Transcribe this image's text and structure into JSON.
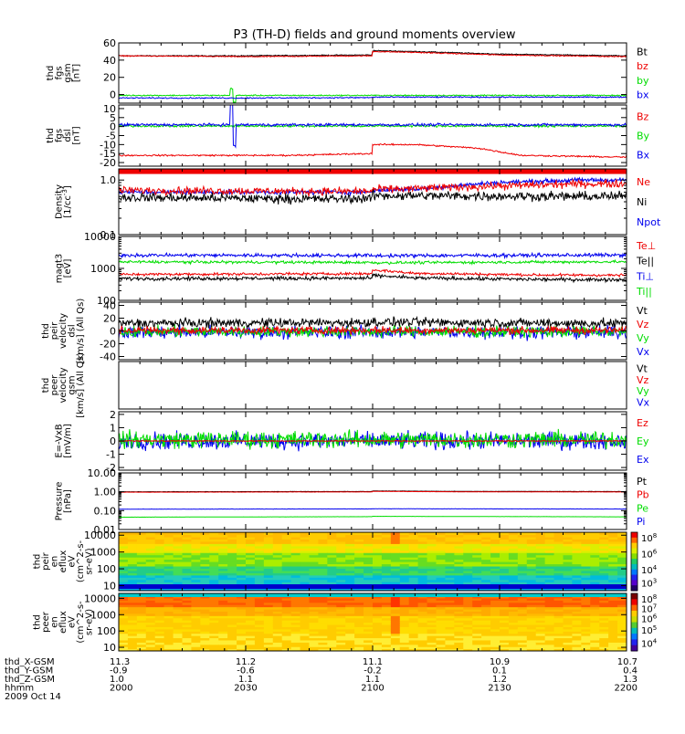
{
  "title": "P3 (TH-D) fields and ground moments overview",
  "colors": {
    "black": "#000000",
    "red": "#ee0000",
    "green": "#00dd00",
    "blue": "#0000ee",
    "spec_bg": "#ffcc00"
  },
  "x_axis": {
    "range": [
      2000,
      2200
    ],
    "tick_values": [
      2000,
      2030,
      2100,
      2130,
      2200
    ],
    "minor_per_major": 6,
    "rows": [
      {
        "label": "thd_X-GSM",
        "values": [
          "11.3",
          "11.2",
          "11.1",
          "10.9",
          "10.7"
        ]
      },
      {
        "label": "thd_Y-GSM",
        "values": [
          "-0.9",
          "-0.6",
          "-0.2",
          "0.1",
          "0.4"
        ]
      },
      {
        "label": "thd_Z-GSM",
        "values": [
          "1.0",
          "1.1",
          "1.1",
          "1.2",
          "1.3"
        ]
      },
      {
        "label": "hhmm",
        "values": [
          "2000",
          "2030",
          "2100",
          "2130",
          "2200"
        ]
      }
    ],
    "date": "2009 Oct 14"
  },
  "colorbars": [
    {
      "name": "ion",
      "labels": [
        {
          "base": "10",
          "exp": "8",
          "f": 0.0
        },
        {
          "base": "10",
          "exp": "6",
          "f": 0.3
        },
        {
          "base": "10",
          "exp": "4",
          "f": 0.6
        },
        {
          "base": "10",
          "exp": "3",
          "f": 0.85
        }
      ]
    },
    {
      "name": "electron",
      "labels": [
        {
          "base": "10",
          "exp": "8",
          "f": 0.0
        },
        {
          "base": "10",
          "exp": "7",
          "f": 0.18
        },
        {
          "base": "10",
          "exp": "6",
          "f": 0.38
        },
        {
          "base": "10",
          "exp": "5",
          "f": 0.6
        },
        {
          "base": "10",
          "exp": "4",
          "f": 0.85
        }
      ]
    }
  ],
  "chart_data": [
    {
      "type": "line",
      "name": "fgs_gsm",
      "ylabel_lines": [
        "thd",
        "fgs",
        "gsm",
        "[nT]"
      ],
      "ylim": [
        -10,
        60
      ],
      "y_ticks": [
        0,
        20,
        40,
        60
      ],
      "y_tick_labels": [
        "0",
        "20",
        "40",
        "60"
      ],
      "legend": [
        {
          "text": "Bt",
          "color": "black"
        },
        {
          "text": "bz",
          "color": "red"
        },
        {
          "text": "by",
          "color": "green"
        },
        {
          "text": "bx",
          "color": "blue"
        }
      ],
      "series": [
        {
          "label": "Bt",
          "color": "black",
          "x": [
            2000,
            2030,
            2060,
            2090,
            2100,
            2110,
            2130,
            2160,
            2200
          ],
          "y": [
            45,
            45,
            46,
            50,
            51,
            50,
            47,
            45,
            46
          ],
          "noise": 0.4
        },
        {
          "label": "bz",
          "color": "red",
          "x": [
            2000,
            2030,
            2060,
            2090,
            2100,
            2110,
            2130,
            2160,
            2200
          ],
          "y": [
            45,
            44,
            45,
            49,
            50,
            49,
            46,
            44,
            45
          ],
          "noise": 0.4
        },
        {
          "label": "by",
          "color": "green",
          "x": [
            2000,
            2200
          ],
          "y": [
            -1,
            -1
          ],
          "noise": 0.5
        },
        {
          "label": "bx",
          "color": "blue",
          "x": [
            2000,
            2030,
            2100,
            2200
          ],
          "y": [
            -4,
            -4,
            -3,
            -3
          ],
          "noise": 0.5
        }
      ],
      "spikes": [
        {
          "x": 2027,
          "series": "by",
          "amp": 8
        }
      ]
    },
    {
      "type": "line",
      "name": "fgs_dsl",
      "ylabel_lines": [
        "thd",
        "fgs",
        "dsl",
        "[nT]"
      ],
      "ylim": [
        -22,
        12
      ],
      "y_ticks": [
        -20,
        -15,
        -10,
        -5,
        0,
        5,
        10
      ],
      "y_tick_labels": [
        "-20",
        "-15",
        "-10",
        "-5",
        "0",
        "5",
        "10"
      ],
      "legend": [
        {
          "text": "Bz",
          "color": "red"
        },
        {
          "text": "By",
          "color": "green"
        },
        {
          "text": "Bx",
          "color": "blue"
        }
      ],
      "series": [
        {
          "label": "Bz",
          "color": "red",
          "x": [
            2000,
            2040,
            2060,
            2080,
            2095,
            2110,
            2125,
            2135,
            2160,
            2200
          ],
          "y": [
            -16,
            -16,
            -15,
            -12,
            -10,
            -10,
            -12,
            -16,
            -17,
            -16
          ],
          "noise": 0.3
        },
        {
          "label": "By",
          "color": "green",
          "x": [
            2000,
            2200
          ],
          "y": [
            0.3,
            0.3
          ],
          "noise": 0.4
        },
        {
          "label": "Bx",
          "color": "blue",
          "x": [
            2000,
            2200
          ],
          "y": [
            1,
            1
          ],
          "noise": 0.5
        }
      ],
      "spikes": [
        {
          "x": 2027,
          "series": "Bx",
          "amp": 12
        }
      ]
    },
    {
      "type": "line",
      "name": "density",
      "scale": "log",
      "ylabel_lines": [
        "Density",
        "[1/cc]"
      ],
      "ylabel_sup": "-3",
      "ylim": [
        0.1,
        1.6
      ],
      "y_ticks": [
        0.1,
        1.0
      ],
      "y_tick_labels": [
        "0.1",
        "1.0"
      ],
      "legend": [
        {
          "text": "Ne",
          "color": "red"
        },
        {
          "text": "Ni",
          "color": "black"
        },
        {
          "text": "Npot",
          "color": "blue"
        }
      ],
      "series": [
        {
          "label": "Npot",
          "color": "blue",
          "x": [
            2000,
            2050,
            2090,
            2110,
            2130,
            2150,
            2200
          ],
          "y": [
            0.6,
            0.6,
            0.62,
            0.68,
            0.9,
            1.0,
            1.0
          ],
          "noise": 0.03
        },
        {
          "label": "Ne",
          "color": "red",
          "x": [
            2000,
            2050,
            2090,
            2110,
            2130,
            2150,
            2200
          ],
          "y": [
            0.65,
            0.62,
            0.64,
            0.7,
            0.78,
            0.85,
            0.86
          ],
          "noise": 0.05
        },
        {
          "label": "Ni",
          "color": "black",
          "x": [
            2000,
            2050,
            2100,
            2150,
            2200
          ],
          "y": [
            0.48,
            0.45,
            0.52,
            0.5,
            0.52
          ],
          "noise": 0.06
        }
      ],
      "band": {
        "color": "red",
        "y": 1.45
      }
    },
    {
      "type": "line",
      "name": "temperature",
      "scale": "log",
      "ylabel_lines": [
        "magt3",
        "[eV]"
      ],
      "ylim": [
        100,
        10000
      ],
      "y_ticks": [
        100,
        1000,
        10000
      ],
      "y_tick_labels": [
        "100",
        "1000",
        "10000"
      ],
      "legend": [
        {
          "text": "Te⊥",
          "color": "red"
        },
        {
          "text": "Te||",
          "color": "black"
        },
        {
          "text": "Ti⊥",
          "color": "blue"
        },
        {
          "text": "Ti||",
          "color": "green"
        }
      ],
      "series": [
        {
          "label": "Ti⊥",
          "color": "blue",
          "x": [
            2000,
            2100,
            2200
          ],
          "y": [
            2600,
            2500,
            2700
          ],
          "noise": 0.04
        },
        {
          "label": "Ti||",
          "color": "green",
          "x": [
            2000,
            2100,
            2200
          ],
          "y": [
            1600,
            1500,
            1700
          ],
          "noise": 0.03
        },
        {
          "label": "Te⊥",
          "color": "red",
          "x": [
            2000,
            2090,
            2100,
            2110,
            2140,
            2200
          ],
          "y": [
            650,
            700,
            900,
            700,
            620,
            600
          ],
          "noise": 0.03
        },
        {
          "label": "Te||",
          "color": "black",
          "x": [
            2000,
            2090,
            2100,
            2110,
            2140,
            2200
          ],
          "y": [
            480,
            500,
            600,
            500,
            450,
            430
          ],
          "noise": 0.04
        }
      ]
    },
    {
      "type": "line",
      "name": "peir_velocity",
      "ylabel_lines": [
        "thd",
        "peir",
        "velocity",
        "dsl",
        "[km/s] (All Qs)"
      ],
      "ylim": [
        -45,
        45
      ],
      "y_ticks": [
        -40,
        -20,
        0,
        20,
        40
      ],
      "y_tick_labels": [
        "-40",
        "-20",
        "0",
        "20",
        "40"
      ],
      "legend": [
        {
          "text": "Vt",
          "color": "black"
        },
        {
          "text": "Vz",
          "color": "red"
        },
        {
          "text": "Vy",
          "color": "green"
        },
        {
          "text": "Vx",
          "color": "blue"
        }
      ],
      "series": [
        {
          "label": "Vx",
          "color": "blue",
          "x": [
            2000,
            2200
          ],
          "y": [
            -2,
            -2
          ],
          "noise": 7
        },
        {
          "label": "Vy",
          "color": "green",
          "x": [
            2000,
            2200
          ],
          "y": [
            -1,
            -1
          ],
          "noise": 6
        },
        {
          "label": "Vt",
          "color": "black",
          "x": [
            2000,
            2100,
            2200
          ],
          "y": [
            12,
            14,
            10
          ],
          "noise": 5
        },
        {
          "label": "Vz",
          "color": "red",
          "x": [
            2000,
            2200
          ],
          "y": [
            1,
            1
          ],
          "noise": 4
        }
      ]
    },
    {
      "type": "line",
      "name": "peer_velocity",
      "ylabel_lines": [
        "thd",
        "peer",
        "velocity",
        "gsm",
        "[km/s] (All Qs)"
      ],
      "ylim": [
        -45,
        45
      ],
      "y_ticks": [],
      "y_tick_labels": [],
      "legend": [
        {
          "text": "Vt",
          "color": "black"
        },
        {
          "text": "Vz",
          "color": "red"
        },
        {
          "text": "Vy",
          "color": "green"
        },
        {
          "text": "Vx",
          "color": "blue"
        }
      ],
      "series": []
    },
    {
      "type": "line",
      "name": "efield",
      "ylabel_lines": [
        "E=-VxB",
        "[mV/m]"
      ],
      "ylim": [
        -2.2,
        2.2
      ],
      "y_ticks": [
        -2,
        -1,
        0,
        1,
        2
      ],
      "y_tick_labels": [
        "-2",
        "-1",
        "0",
        "1",
        "2"
      ],
      "legend": [
        {
          "text": "Ez",
          "color": "red"
        },
        {
          "text": "Ey",
          "color": "green"
        },
        {
          "text": "Ex",
          "color": "blue"
        }
      ],
      "series": [
        {
          "label": "Ex",
          "color": "blue",
          "x": [
            2000,
            2200
          ],
          "y": [
            0,
            0
          ],
          "noise": 0.45
        },
        {
          "label": "Ey",
          "color": "green",
          "x": [
            2000,
            2200
          ],
          "y": [
            0.1,
            0.1
          ],
          "noise": 0.45
        },
        {
          "label": "Ez",
          "color": "red",
          "x": [
            2000,
            2200
          ],
          "y": [
            0,
            0
          ],
          "noise": 0.03
        }
      ]
    },
    {
      "type": "line",
      "name": "pressure",
      "scale": "log",
      "ylabel_lines": [
        "Pressure",
        "[nPa]"
      ],
      "ylim": [
        0.01,
        10
      ],
      "y_ticks": [
        0.01,
        0.1,
        1,
        10
      ],
      "y_tick_labels": [
        "0.01",
        "0.10",
        "1.00",
        "10.00"
      ],
      "legend": [
        {
          "text": "Pt",
          "color": "black"
        },
        {
          "text": "Pb",
          "color": "red"
        },
        {
          "text": "Pe",
          "color": "green"
        },
        {
          "text": "Pi",
          "color": "blue"
        }
      ],
      "series": [
        {
          "label": "Pt",
          "color": "black",
          "x": [
            2000,
            2090,
            2100,
            2120,
            2200
          ],
          "y": [
            1.0,
            1.05,
            1.1,
            1.05,
            1.0
          ],
          "noise": 0.005
        },
        {
          "label": "Pb",
          "color": "red",
          "x": [
            2000,
            2090,
            2100,
            2120,
            2200
          ],
          "y": [
            0.95,
            1.0,
            1.05,
            1.0,
            0.95
          ],
          "noise": 0.005
        },
        {
          "label": "Pi",
          "color": "blue",
          "x": [
            2000,
            2100,
            2200
          ],
          "y": [
            0.12,
            0.125,
            0.12
          ],
          "noise": 0.005
        },
        {
          "label": "Pe",
          "color": "green",
          "x": [
            2000,
            2100,
            2200
          ],
          "y": [
            0.045,
            0.05,
            0.045
          ],
          "noise": 0.003
        }
      ]
    },
    {
      "type": "heatmap",
      "name": "peir_spectrogram",
      "scale": "log",
      "ylabel_lines": [
        "thd",
        "peir",
        "en",
        "eflux",
        "eV",
        "(cm^2-s-",
        "sr-eV)"
      ],
      "ylim": [
        5,
        15000
      ],
      "y_ticks": [
        10,
        100,
        1000,
        10000
      ],
      "y_tick_labels": [
        "10",
        "100",
        "1000",
        "10000"
      ],
      "profile": "ion"
    },
    {
      "type": "heatmap",
      "name": "peer_spectrogram",
      "scale": "log",
      "ylabel_lines": [
        "thd",
        "peer",
        "en",
        "eflux",
        "eV",
        "(cm^2-s-",
        "sr-eV)"
      ],
      "ylim": [
        6,
        20000
      ],
      "y_ticks": [
        10,
        100,
        1000,
        10000
      ],
      "y_tick_labels": [
        "10",
        "100",
        "1000",
        "10000"
      ],
      "profile": "electron"
    }
  ]
}
